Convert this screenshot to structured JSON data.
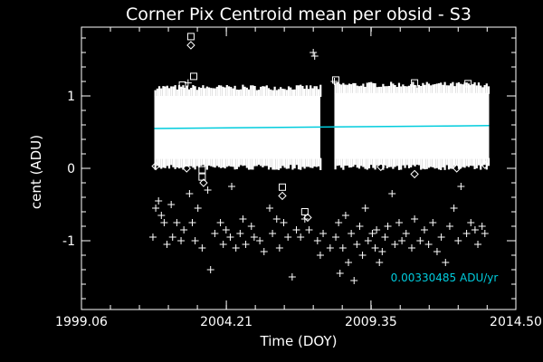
{
  "chart_data": {
    "type": "scatter",
    "title": "Corner Pix Centroid mean per obsid - S3",
    "xlabel": "Time (DOY)",
    "ylabel": "cent (ADU)",
    "xlim": [
      1999.06,
      2014.5
    ],
    "ylim": [
      -1.95,
      1.95
    ],
    "x_ticks": [
      {
        "value": 1999.06,
        "label": "1999.06"
      },
      {
        "value": 2004.21,
        "label": "2004.21"
      },
      {
        "value": 2009.35,
        "label": "2009.35"
      },
      {
        "value": 2014.5,
        "label": "2014.50"
      }
    ],
    "y_ticks": [
      {
        "value": 1,
        "label": "1"
      },
      {
        "value": 0,
        "label": "0"
      },
      {
        "value": -1,
        "label": "-1"
      }
    ],
    "grid": false,
    "colors": {
      "background": "#000000",
      "points": "#ffffff",
      "fit": "#00ccdd"
    },
    "band": {
      "segments": [
        {
          "x": [
            2001.65,
            2007.55
          ],
          "y_center": 0.59,
          "y_low": 0.05,
          "y_high": 1.08
        },
        {
          "x": [
            2008.05,
            2013.55
          ],
          "y_center": 0.62,
          "y_low": 0.05,
          "y_high": 1.12
        }
      ]
    },
    "series": [
      {
        "marker": "square",
        "points": [
          {
            "x": 2002.95,
            "y": 1.82
          },
          {
            "x": 2003.05,
            "y": 1.27
          },
          {
            "x": 2003.35,
            "y": -0.02
          },
          {
            "x": 2003.35,
            "y": -0.12
          },
          {
            "x": 2006.2,
            "y": -0.26
          },
          {
            "x": 2007.0,
            "y": -0.6
          },
          {
            "x": 2002.65,
            "y": 1.15
          },
          {
            "x": 2008.1,
            "y": 1.22
          },
          {
            "x": 2010.9,
            "y": 1.18
          },
          {
            "x": 2012.8,
            "y": 1.17
          }
        ]
      },
      {
        "marker": "diamond",
        "points": [
          {
            "x": 2002.95,
            "y": 1.7
          },
          {
            "x": 2003.4,
            "y": -0.2
          },
          {
            "x": 2006.2,
            "y": -0.38
          },
          {
            "x": 2007.1,
            "y": -0.68
          },
          {
            "x": 2001.7,
            "y": 0.03
          },
          {
            "x": 2002.8,
            "y": 0.0
          },
          {
            "x": 2009.7,
            "y": 0.02
          },
          {
            "x": 2010.9,
            "y": -0.08
          },
          {
            "x": 2012.4,
            "y": 0.0
          },
          {
            "x": 2013.4,
            "y": 0.05
          }
        ]
      },
      {
        "marker": "plus",
        "points": [
          {
            "x": 2001.6,
            "y": -0.95
          },
          {
            "x": 2001.7,
            "y": -0.55
          },
          {
            "x": 2001.8,
            "y": -0.45
          },
          {
            "x": 2001.9,
            "y": -0.65
          },
          {
            "x": 2002.0,
            "y": -0.75
          },
          {
            "x": 2002.1,
            "y": -1.05
          },
          {
            "x": 2002.25,
            "y": -0.5
          },
          {
            "x": 2002.3,
            "y": -0.95
          },
          {
            "x": 2002.45,
            "y": -0.75
          },
          {
            "x": 2002.6,
            "y": -1.0
          },
          {
            "x": 2002.7,
            "y": -0.85
          },
          {
            "x": 2002.85,
            "y": 1.18
          },
          {
            "x": 2002.9,
            "y": -0.35
          },
          {
            "x": 2003.0,
            "y": -0.75
          },
          {
            "x": 2003.1,
            "y": -1.0
          },
          {
            "x": 2003.2,
            "y": -0.55
          },
          {
            "x": 2003.35,
            "y": -1.1
          },
          {
            "x": 2003.55,
            "y": -0.3
          },
          {
            "x": 2003.65,
            "y": -1.4
          },
          {
            "x": 2003.8,
            "y": -0.9
          },
          {
            "x": 2004.0,
            "y": -0.75
          },
          {
            "x": 2004.1,
            "y": -1.05
          },
          {
            "x": 2004.2,
            "y": -0.85
          },
          {
            "x": 2004.35,
            "y": -0.95
          },
          {
            "x": 2004.4,
            "y": -0.25
          },
          {
            "x": 2004.55,
            "y": -1.1
          },
          {
            "x": 2004.7,
            "y": -0.9
          },
          {
            "x": 2004.8,
            "y": -0.7
          },
          {
            "x": 2004.9,
            "y": -1.05
          },
          {
            "x": 2005.1,
            "y": -0.8
          },
          {
            "x": 2005.2,
            "y": -0.95
          },
          {
            "x": 2005.4,
            "y": -1.0
          },
          {
            "x": 2005.55,
            "y": -1.15
          },
          {
            "x": 2005.75,
            "y": -0.55
          },
          {
            "x": 2005.85,
            "y": -0.9
          },
          {
            "x": 2006.0,
            "y": -0.7
          },
          {
            "x": 2006.1,
            "y": -1.1
          },
          {
            "x": 2006.25,
            "y": -0.75
          },
          {
            "x": 2006.4,
            "y": -0.95
          },
          {
            "x": 2006.55,
            "y": -1.5
          },
          {
            "x": 2006.7,
            "y": -0.85
          },
          {
            "x": 2006.85,
            "y": -0.95
          },
          {
            "x": 2007.0,
            "y": -0.7
          },
          {
            "x": 2007.15,
            "y": -0.85
          },
          {
            "x": 2007.3,
            "y": 1.6
          },
          {
            "x": 2007.35,
            "y": 1.55
          },
          {
            "x": 2007.45,
            "y": -1.0
          },
          {
            "x": 2007.55,
            "y": -1.2
          },
          {
            "x": 2007.65,
            "y": -0.9
          },
          {
            "x": 2007.9,
            "y": -1.1
          },
          {
            "x": 2008.05,
            "y": 1.2
          },
          {
            "x": 2008.1,
            "y": -0.95
          },
          {
            "x": 2008.2,
            "y": -0.75
          },
          {
            "x": 2008.25,
            "y": -1.45
          },
          {
            "x": 2008.35,
            "y": -1.1
          },
          {
            "x": 2008.45,
            "y": -0.65
          },
          {
            "x": 2008.55,
            "y": -1.3
          },
          {
            "x": 2008.65,
            "y": -0.9
          },
          {
            "x": 2008.75,
            "y": -1.55
          },
          {
            "x": 2008.85,
            "y": -1.05
          },
          {
            "x": 2008.95,
            "y": -0.8
          },
          {
            "x": 2009.05,
            "y": -1.2
          },
          {
            "x": 2009.15,
            "y": -0.55
          },
          {
            "x": 2009.25,
            "y": -1.0
          },
          {
            "x": 2009.4,
            "y": -0.9
          },
          {
            "x": 2009.5,
            "y": -1.1
          },
          {
            "x": 2009.55,
            "y": -0.85
          },
          {
            "x": 2009.65,
            "y": -1.3
          },
          {
            "x": 2009.75,
            "y": -1.15
          },
          {
            "x": 2009.85,
            "y": -0.95
          },
          {
            "x": 2009.95,
            "y": -0.8
          },
          {
            "x": 2010.1,
            "y": -0.35
          },
          {
            "x": 2010.2,
            "y": -1.05
          },
          {
            "x": 2010.35,
            "y": -0.75
          },
          {
            "x": 2010.45,
            "y": -1.0
          },
          {
            "x": 2010.6,
            "y": -0.9
          },
          {
            "x": 2010.8,
            "y": -1.1
          },
          {
            "x": 2010.9,
            "y": -0.7
          },
          {
            "x": 2011.1,
            "y": -1.0
          },
          {
            "x": 2011.25,
            "y": -0.85
          },
          {
            "x": 2011.4,
            "y": -1.05
          },
          {
            "x": 2011.55,
            "y": -0.75
          },
          {
            "x": 2011.7,
            "y": -1.15
          },
          {
            "x": 2011.85,
            "y": -0.95
          },
          {
            "x": 2012.0,
            "y": -1.3
          },
          {
            "x": 2012.15,
            "y": -0.8
          },
          {
            "x": 2012.3,
            "y": -0.55
          },
          {
            "x": 2012.45,
            "y": -1.0
          },
          {
            "x": 2012.55,
            "y": -0.25
          },
          {
            "x": 2012.75,
            "y": -0.9
          },
          {
            "x": 2012.9,
            "y": -0.75
          },
          {
            "x": 2013.05,
            "y": -0.85
          },
          {
            "x": 2013.15,
            "y": -1.05
          },
          {
            "x": 2013.3,
            "y": -0.8
          },
          {
            "x": 2013.4,
            "y": -0.9
          }
        ]
      }
    ],
    "fit_line": {
      "x": [
        2001.65,
        2013.55
      ],
      "y": [
        0.55,
        0.59
      ]
    },
    "annotation": {
      "text": "0.00330485 ADU/yr",
      "x": 2010.05,
      "y": -1.56
    }
  }
}
